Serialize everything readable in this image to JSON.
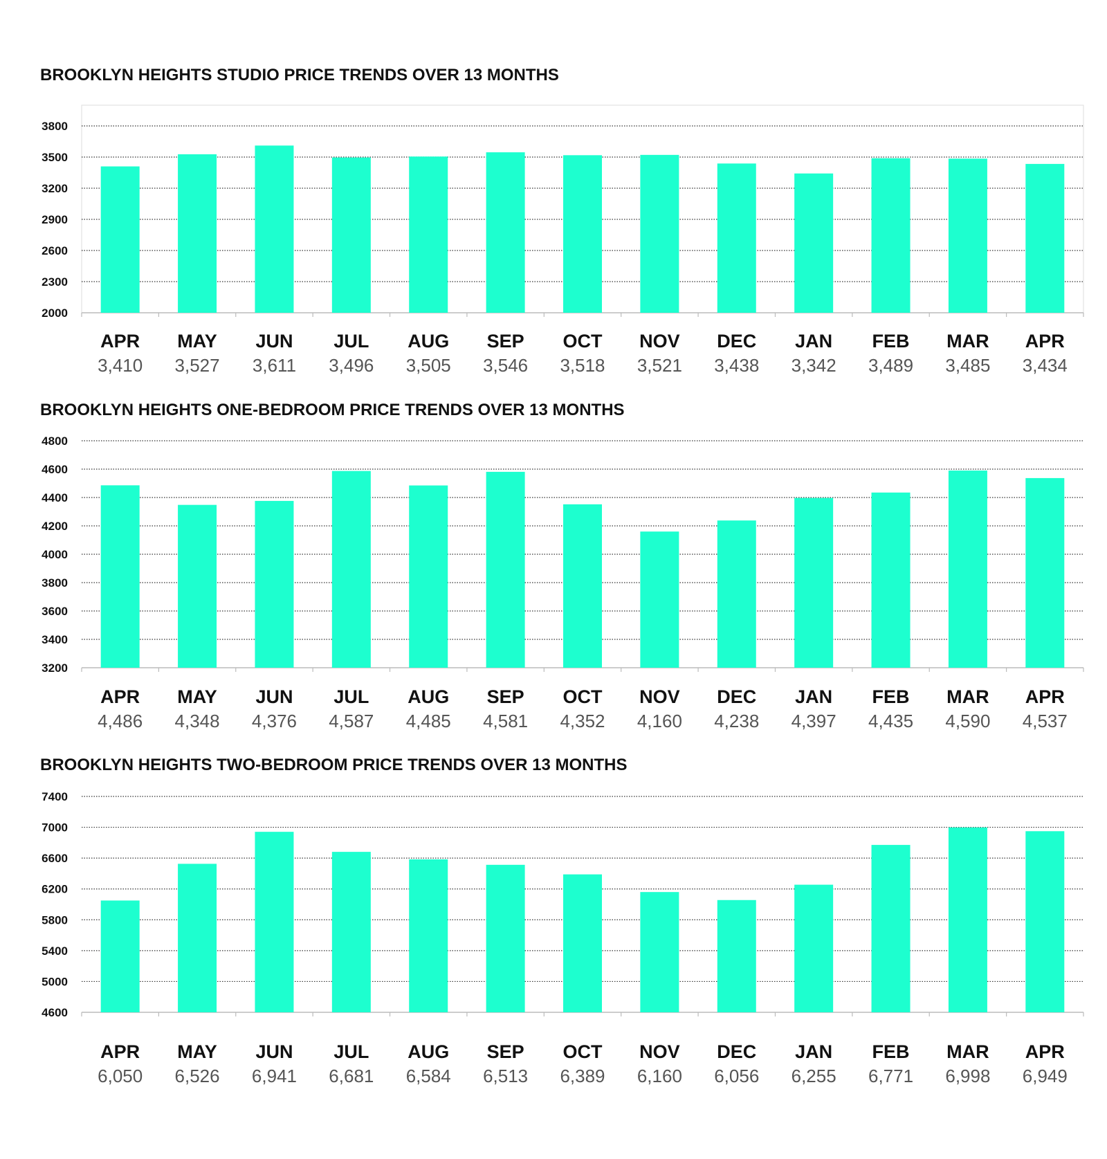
{
  "colors": {
    "bar": "#1dffcf",
    "grid": "#333333",
    "axis": "#bbbbbb",
    "month": "#111111",
    "value": "#555555"
  },
  "chart_data": [
    {
      "type": "bar",
      "title": "BROOKLYN HEIGHTS STUDIO PRICE TRENDS OVER 13 MONTHS",
      "categories": [
        "APR",
        "MAY",
        "JUN",
        "JUL",
        "AUG",
        "SEP",
        "OCT",
        "NOV",
        "DEC",
        "JAN",
        "FEB",
        "MAR",
        "APR"
      ],
      "values": [
        3410,
        3527,
        3611,
        3496,
        3505,
        3546,
        3518,
        3521,
        3438,
        3342,
        3489,
        3485,
        3434
      ],
      "value_labels": [
        "3,410",
        "3,527",
        "3,611",
        "3,496",
        "3,505",
        "3,546",
        "3,518",
        "3,521",
        "3,438",
        "3,342",
        "3,489",
        "3,485",
        "3,434"
      ],
      "yticks": [
        2000,
        2300,
        2600,
        2900,
        3200,
        3500,
        3800
      ],
      "ylim": [
        2000,
        3800
      ],
      "grid": true,
      "plot_border": true
    },
    {
      "type": "bar",
      "title": "BROOKLYN HEIGHTS ONE-BEDROOM PRICE TRENDS OVER 13 MONTHS",
      "categories": [
        "APR",
        "MAY",
        "JUN",
        "JUL",
        "AUG",
        "SEP",
        "OCT",
        "NOV",
        "DEC",
        "JAN",
        "FEB",
        "MAR",
        "APR"
      ],
      "values": [
        4486,
        4348,
        4376,
        4587,
        4485,
        4581,
        4352,
        4160,
        4238,
        4397,
        4435,
        4590,
        4537
      ],
      "value_labels": [
        "4,486",
        "4,348",
        "4,376",
        "4,587",
        "4,485",
        "4,581",
        "4,352",
        "4,160",
        "4,238",
        "4,397",
        "4,435",
        "4,590",
        "4,537"
      ],
      "yticks": [
        3200,
        3400,
        3600,
        3800,
        4000,
        4200,
        4400,
        4600,
        4800
      ],
      "ylim": [
        3200,
        4800
      ],
      "grid": true,
      "plot_border": false
    },
    {
      "type": "bar",
      "title": "BROOKLYN HEIGHTS TWO-BEDROOM PRICE TRENDS OVER 13 MONTHS",
      "categories": [
        "APR",
        "MAY",
        "JUN",
        "JUL",
        "AUG",
        "SEP",
        "OCT",
        "NOV",
        "DEC",
        "JAN",
        "FEB",
        "MAR",
        "APR"
      ],
      "values": [
        6050,
        6526,
        6941,
        6681,
        6584,
        6513,
        6389,
        6160,
        6056,
        6255,
        6771,
        6998,
        6949
      ],
      "value_labels": [
        "6,050",
        "6,526",
        "6,941",
        "6,681",
        "6,584",
        "6,513",
        "6,389",
        "6,160",
        "6,056",
        "6,255",
        "6,771",
        "6,998",
        "6,949"
      ],
      "yticks": [
        4600,
        5000,
        5400,
        5800,
        6200,
        6600,
        7000,
        7400
      ],
      "ylim": [
        4600,
        7400
      ],
      "grid": true,
      "plot_border": false
    }
  ]
}
